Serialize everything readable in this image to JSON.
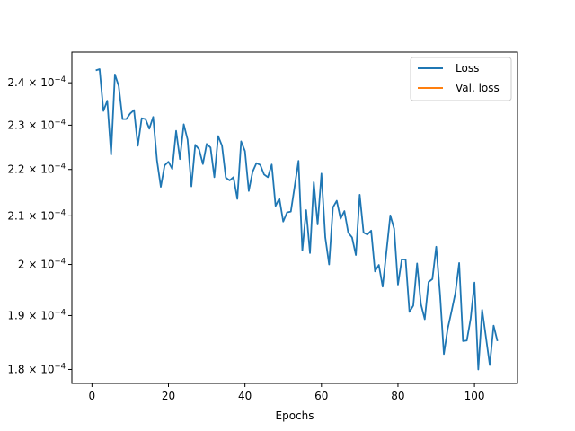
{
  "chart_data": {
    "type": "line",
    "title": "",
    "xlabel": "Epochs",
    "ylabel": "",
    "xlim": [
      -5.25,
      111.25
    ],
    "ylim": [
      0.0001775,
      0.0002475
    ],
    "yscale": "log",
    "grid": false,
    "legend_position": "top-right",
    "x_ticks": [
      {
        "value": 0,
        "label": "0"
      },
      {
        "value": 20,
        "label": "20"
      },
      {
        "value": 40,
        "label": "40"
      },
      {
        "value": 60,
        "label": "60"
      },
      {
        "value": 80,
        "label": "80"
      },
      {
        "value": 100,
        "label": "100"
      }
    ],
    "y_ticks": [
      {
        "value": 0.00018,
        "mantissa": "1.8",
        "exponent": "−4"
      },
      {
        "value": 0.00019,
        "mantissa": "1.9",
        "exponent": "−4"
      },
      {
        "value": 0.0002,
        "mantissa": "2",
        "exponent": "−4"
      },
      {
        "value": 0.00021,
        "mantissa": "2.1",
        "exponent": "−4"
      },
      {
        "value": 0.00022,
        "mantissa": "2.2",
        "exponent": "−4"
      },
      {
        "value": 0.00023,
        "mantissa": "2.3",
        "exponent": "−4"
      },
      {
        "value": 0.00024,
        "mantissa": "2.4",
        "exponent": "−4"
      }
    ],
    "tick_base": "10",
    "series": [
      {
        "name": "Loss",
        "color": "#1f77b4",
        "x": [
          1,
          2,
          3,
          4,
          5,
          6,
          7,
          8,
          9,
          10,
          11,
          12,
          13,
          14,
          15,
          16,
          17,
          18,
          19,
          20,
          21,
          22,
          23,
          24,
          25,
          26,
          27,
          28,
          29,
          30,
          31,
          32,
          33,
          34,
          35,
          36,
          37,
          38,
          39,
          40,
          41,
          42,
          43,
          44,
          45,
          46,
          47,
          48,
          49,
          50,
          51,
          52,
          53,
          54,
          55,
          56,
          57,
          58,
          59,
          60,
          61,
          62,
          63,
          64,
          65,
          66,
          67,
          68,
          69,
          70,
          71,
          72,
          73,
          74,
          75,
          76,
          77,
          78,
          79,
          80,
          81,
          82,
          83,
          84,
          85,
          86,
          87,
          88,
          89,
          90,
          91,
          92,
          93,
          94,
          95,
          96,
          97,
          98,
          99,
          100,
          101,
          102,
          103,
          104,
          105,
          106
        ],
        "y": [
          0.000243,
          0.0002433,
          0.0002333,
          0.0002357,
          0.0002233,
          0.000242,
          0.0002392,
          0.0002314,
          0.0002314,
          0.0002327,
          0.0002335,
          0.0002253,
          0.0002316,
          0.0002314,
          0.0002292,
          0.0002319,
          0.000222,
          0.0002162,
          0.0002209,
          0.0002217,
          0.0002201,
          0.0002287,
          0.0002223,
          0.0002302,
          0.0002267,
          0.0002163,
          0.0002255,
          0.0002245,
          0.0002212,
          0.0002257,
          0.0002249,
          0.0002183,
          0.0002275,
          0.0002253,
          0.0002182,
          0.0002176,
          0.0002183,
          0.0002136,
          0.0002263,
          0.0002241,
          0.0002153,
          0.0002195,
          0.0002214,
          0.000221,
          0.0002189,
          0.0002183,
          0.0002211,
          0.0002121,
          0.0002137,
          0.0002088,
          0.0002107,
          0.0002109,
          0.0002163,
          0.0002219,
          0.0002028,
          0.0002112,
          0.0002023,
          0.0002172,
          0.0002082,
          0.0002191,
          0.0002055,
          0.0002,
          0.0002118,
          0.0002132,
          0.0002094,
          0.000211,
          0.0002065,
          0.0002055,
          0.0002019,
          0.0002145,
          0.0002065,
          0.0002061,
          0.0002069,
          0.0001986,
          0.0001999,
          0.0001956,
          0.0002027,
          0.0002101,
          0.0002073,
          0.000196,
          0.000201,
          0.000201,
          0.0001907,
          0.0001919,
          0.0002002,
          0.0001922,
          0.0001893,
          0.0001965,
          0.0001971,
          0.0002036,
          0.0001941,
          0.0001828,
          0.0001875,
          0.0001908,
          0.0001943,
          0.0002003,
          0.0001852,
          0.0001853,
          0.0001894,
          0.0001964,
          0.00018,
          0.0001911,
          0.0001859,
          0.0001808,
          0.0001881,
          0.0001852
        ]
      },
      {
        "name": "Val. loss",
        "color": "#ff7f0e",
        "x": [],
        "y": []
      }
    ]
  }
}
